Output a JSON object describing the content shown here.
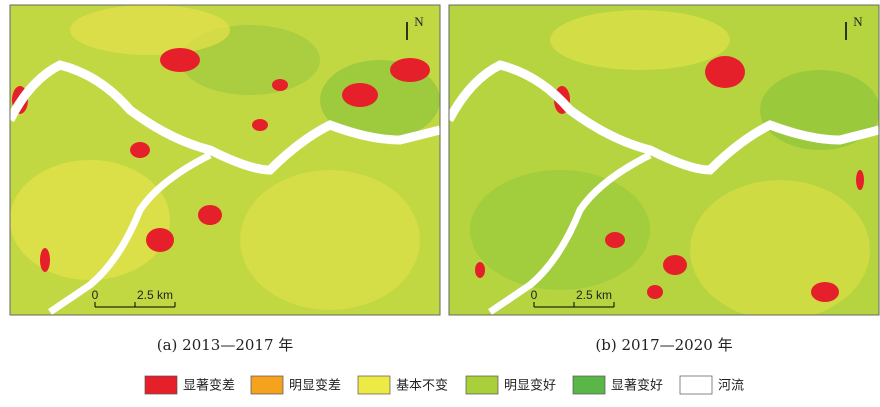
{
  "panels": [
    {
      "caption": "(a) 2013—2017 年",
      "north": "N",
      "scale": {
        "start": "0",
        "end": "2.5 km"
      }
    },
    {
      "caption": "(b) 2017—2020 年",
      "north": "N",
      "scale": {
        "start": "0",
        "end": "2.5 km"
      }
    }
  ],
  "legend": [
    {
      "label": "显著变差",
      "color": "#e5202a"
    },
    {
      "label": "明显变差",
      "color": "#f5a21e"
    },
    {
      "label": "基本不变",
      "color": "#eeea45"
    },
    {
      "label": "明显变好",
      "color": "#a9cf3a"
    },
    {
      "label": "显著变好",
      "color": "#5ab646"
    },
    {
      "label": "河流",
      "color": "#ffffff"
    }
  ]
}
